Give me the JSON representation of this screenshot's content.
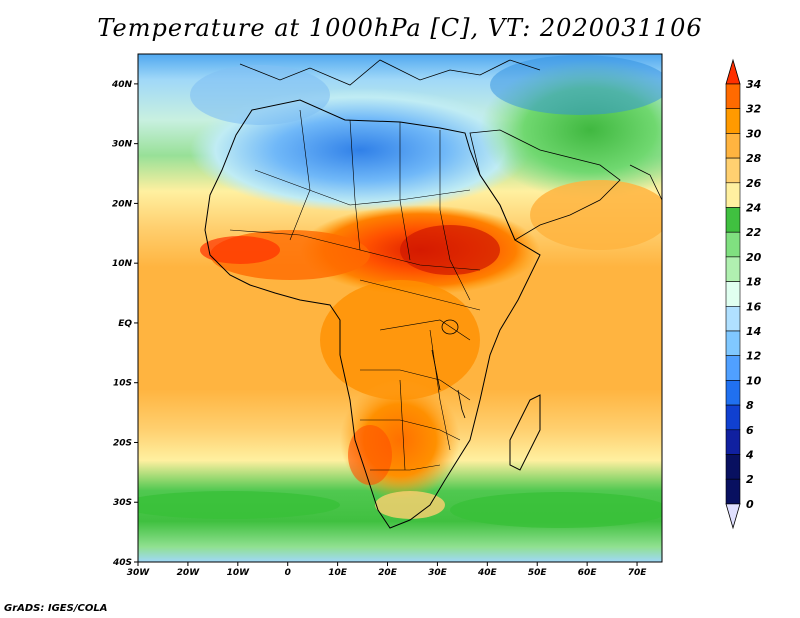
{
  "title": "Temperature at 1000hPa [C], VT: 2020031106",
  "footer": "GrADS: IGES/COLA",
  "map": {
    "variable": "Temperature at 1000hPa",
    "units": "C",
    "valid_time": "2020031106",
    "lon_range": [
      -30,
      75
    ],
    "lat_range": [
      -40,
      45
    ],
    "lat_labels": [
      "40N",
      "30N",
      "20N",
      "10N",
      "EQ",
      "10S",
      "20S",
      "30S",
      "40S"
    ],
    "lon_labels": [
      "30W",
      "20W",
      "10W",
      "0",
      "10E",
      "20E",
      "30E",
      "40E",
      "50E",
      "60E",
      "70E"
    ]
  },
  "colorbar": {
    "labels": [
      "34",
      "32",
      "30",
      "28",
      "26",
      "24",
      "22",
      "20",
      "18",
      "16",
      "14",
      "12",
      "10",
      "8",
      "6",
      "4",
      "2",
      "0"
    ],
    "colors": [
      "#ff3000",
      "#ff6a00",
      "#ff9a00",
      "#ffb440",
      "#ffd070",
      "#fff0a0",
      "#40c040",
      "#80e080",
      "#b0f0b0",
      "#e0fff0",
      "#b0e0ff",
      "#80c8ff",
      "#50a0ff",
      "#2070f0",
      "#1040d0",
      "#1020a0",
      "#081060",
      "#e0e0ff"
    ]
  }
}
